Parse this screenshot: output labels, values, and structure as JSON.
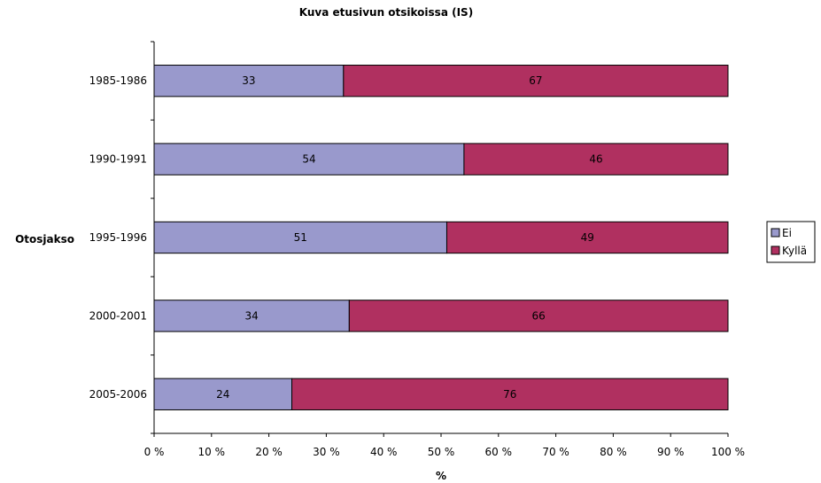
{
  "chart_data": {
    "type": "bar",
    "orientation": "horizontal",
    "stacked": "percent",
    "title": "Kuva etusivun otsikoissa (IS)",
    "ylabel": "Otosjakso",
    "xlabel": "%",
    "categories": [
      "1985-1986",
      "1990-1991",
      "1995-1996",
      "2000-2001",
      "2005-2006"
    ],
    "series": [
      {
        "name": "Ei",
        "values": [
          33,
          54,
          51,
          34,
          24
        ],
        "color": "#9999cc"
      },
      {
        "name": "Kyllä",
        "values": [
          67,
          46,
          49,
          66,
          76
        ],
        "color": "#b03060"
      }
    ],
    "xlim": [
      0,
      100
    ],
    "xticks": [
      0,
      10,
      20,
      30,
      40,
      50,
      60,
      70,
      80,
      90,
      100
    ],
    "xtick_labels": [
      "0 %",
      "10 %",
      "20 %",
      "30 %",
      "40 %",
      "50 %",
      "60 %",
      "70 %",
      "80 %",
      "90 %",
      "100 %"
    ],
    "grid": false,
    "legend": "right"
  }
}
